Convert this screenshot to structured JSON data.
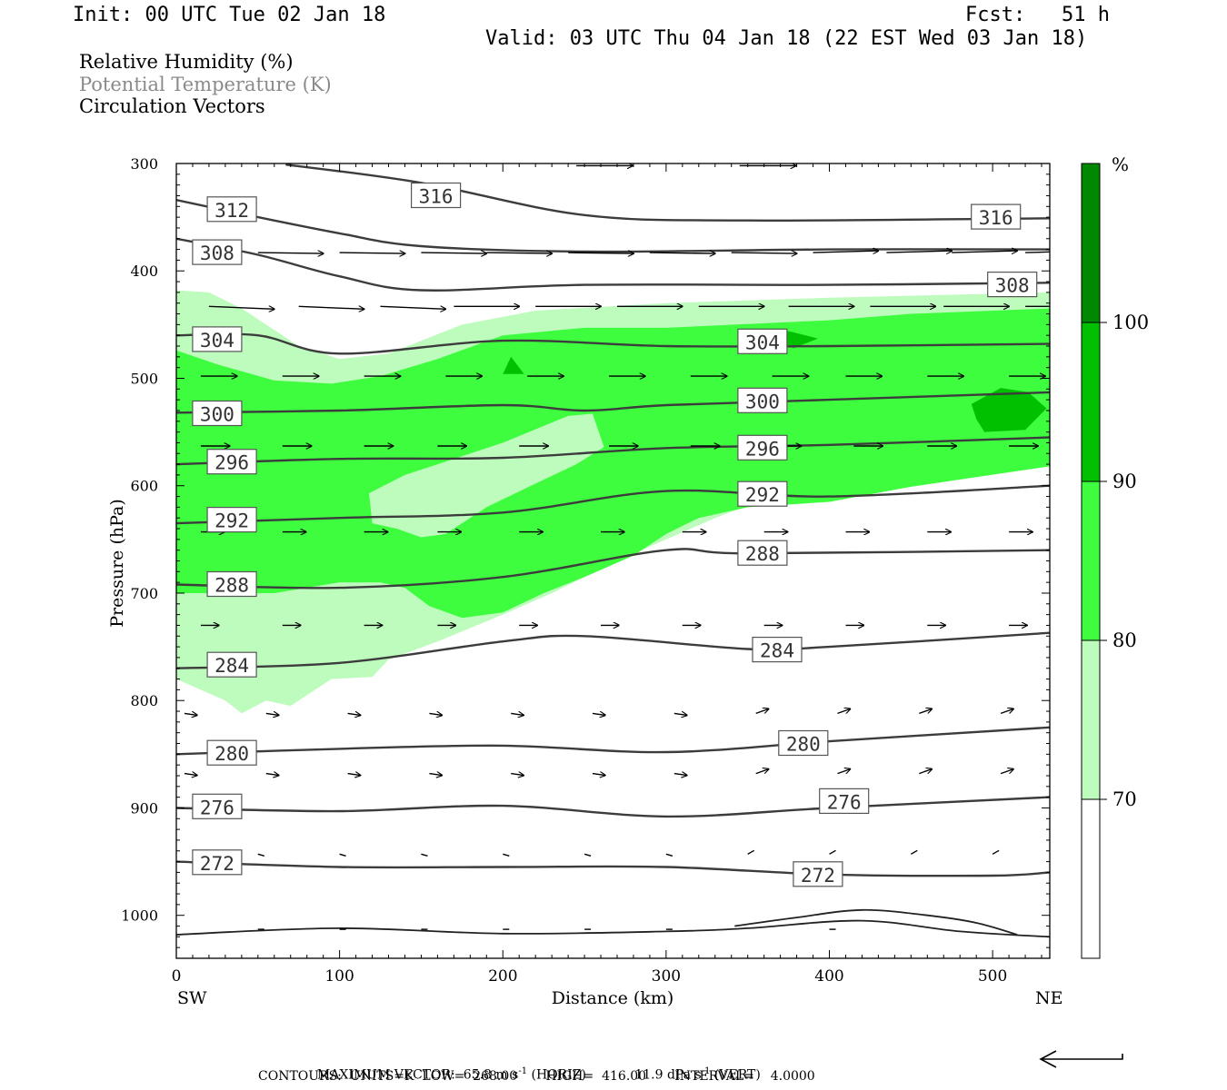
{
  "header": {
    "init": "Init: 00 UTC Tue 02 Jan 18",
    "fcst": "Fcst:   51 h",
    "valid": "Valid: 03 UTC Thu 04 Jan 18 (22 EST Wed 03 Jan 18)"
  },
  "legend_lines": {
    "rh": "Relative Humidity (%)",
    "theta": "Potential Temperature (K)",
    "vectors": "Circulation Vectors"
  },
  "colors": {
    "rh_70_80": "#bdfcbd",
    "rh_80_90": "#3efc3e",
    "rh_90_100": "#00c000",
    "rh_100": "#008800",
    "theta_line": "#3c3c3c",
    "theta_label_text": "#333333"
  },
  "footer": {
    "max_vector": "MAXIMUM VECTOR:  65.8 m s",
    "max_vector_horiz_unit": "(HORIZ)",
    "max_vector_vert": "11.9 dPa s",
    "max_vector_vert_unit": "(VERT)",
    "contours": "CONTOURS:  UNITS=K  LOW=  268.00       HIGH=  416.00       INTERVAL=    4.0000"
  },
  "chart_data": {
    "type": "cross-section",
    "xlabel": "Distance (km)",
    "ylabel": "Pressure (hPa)",
    "xlim": [
      0,
      535
    ],
    "ylim": [
      300,
      1040
    ],
    "x_ticks": [
      0,
      100,
      200,
      300,
      400,
      500
    ],
    "y_ticks": [
      300,
      400,
      500,
      600,
      700,
      800,
      900,
      1000
    ],
    "x_end_labels": {
      "left": "SW",
      "right": "NE"
    },
    "colorbar": {
      "unit": "%",
      "levels": [
        70,
        80,
        90,
        100
      ]
    },
    "theta_contours": [
      {
        "level": 316,
        "label_pos": [
          [
            159,
            330
          ],
          [
            502,
            350
          ]
        ],
        "points": [
          [
            67,
            301
          ],
          [
            150,
            318
          ],
          [
            250,
            348
          ],
          [
            350,
            353
          ],
          [
            535,
            351
          ]
        ]
      },
      {
        "level": 312,
        "label_pos": [
          [
            34,
            343
          ]
        ],
        "points": [
          [
            0,
            334
          ],
          [
            50,
            350
          ],
          [
            100,
            365
          ],
          [
            150,
            377
          ],
          [
            250,
            382
          ],
          [
            400,
            380
          ],
          [
            535,
            380
          ]
        ]
      },
      {
        "level": 308,
        "label_pos": [
          [
            25,
            383
          ],
          [
            512,
            413
          ]
        ],
        "points": [
          [
            0,
            370
          ],
          [
            50,
            385
          ],
          [
            100,
            405
          ],
          [
            150,
            418
          ],
          [
            250,
            413
          ],
          [
            400,
            413
          ],
          [
            535,
            411
          ]
        ]
      },
      {
        "level": 304,
        "label_pos": [
          [
            25,
            464
          ],
          [
            359,
            466
          ]
        ],
        "points": [
          [
            0,
            460
          ],
          [
            50,
            460
          ],
          [
            100,
            477
          ],
          [
            200,
            465
          ],
          [
            300,
            470
          ],
          [
            400,
            470
          ],
          [
            535,
            468
          ]
        ]
      },
      {
        "level": 300,
        "label_pos": [
          [
            25,
            533
          ],
          [
            359,
            521
          ]
        ],
        "points": [
          [
            0,
            532
          ],
          [
            100,
            530
          ],
          [
            200,
            525
          ],
          [
            250,
            530
          ],
          [
            300,
            525
          ],
          [
            400,
            520
          ],
          [
            535,
            513
          ]
        ]
      },
      {
        "level": 296,
        "label_pos": [
          [
            34,
            578
          ],
          [
            359,
            565
          ]
        ],
        "points": [
          [
            0,
            580
          ],
          [
            100,
            575
          ],
          [
            200,
            574
          ],
          [
            300,
            565
          ],
          [
            400,
            562
          ],
          [
            535,
            555
          ]
        ]
      },
      {
        "level": 292,
        "label_pos": [
          [
            34,
            632
          ],
          [
            359,
            608
          ]
        ],
        "points": [
          [
            0,
            635
          ],
          [
            100,
            630
          ],
          [
            200,
            625
          ],
          [
            300,
            605
          ],
          [
            400,
            610
          ],
          [
            535,
            600
          ]
        ]
      },
      {
        "level": 288,
        "label_pos": [
          [
            34,
            692
          ],
          [
            359,
            663
          ]
        ],
        "points": [
          [
            0,
            692
          ],
          [
            100,
            695
          ],
          [
            200,
            685
          ],
          [
            300,
            660
          ],
          [
            350,
            663
          ],
          [
            535,
            660
          ]
        ]
      },
      {
        "level": 284,
        "label_pos": [
          [
            34,
            767
          ],
          [
            368,
            753
          ]
        ],
        "points": [
          [
            0,
            770
          ],
          [
            100,
            765
          ],
          [
            200,
            745
          ],
          [
            250,
            740
          ],
          [
            350,
            752
          ],
          [
            400,
            750
          ],
          [
            535,
            737
          ]
        ]
      },
      {
        "level": 280,
        "label_pos": [
          [
            34,
            849
          ],
          [
            384,
            840
          ]
        ],
        "points": [
          [
            0,
            850
          ],
          [
            100,
            845
          ],
          [
            200,
            842
          ],
          [
            300,
            848
          ],
          [
            400,
            838
          ],
          [
            535,
            825
          ]
        ]
      },
      {
        "level": 276,
        "label_pos": [
          [
            25,
            899
          ],
          [
            409,
            894
          ]
        ],
        "points": [
          [
            0,
            900
          ],
          [
            100,
            903
          ],
          [
            200,
            898
          ],
          [
            300,
            908
          ],
          [
            400,
            900
          ],
          [
            535,
            890
          ]
        ]
      },
      {
        "level": 272,
        "label_pos": [
          [
            25,
            951
          ],
          [
            393,
            962
          ]
        ],
        "points": [
          [
            0,
            950
          ],
          [
            100,
            955
          ],
          [
            200,
            955
          ],
          [
            300,
            955
          ],
          [
            400,
            962
          ],
          [
            500,
            963
          ],
          [
            535,
            960
          ]
        ]
      }
    ],
    "rh_regions": [
      {
        "level": 70,
        "points": [
          [
            0,
            418
          ],
          [
            20,
            420
          ],
          [
            40,
            435
          ],
          [
            75,
            470
          ],
          [
            100,
            482
          ],
          [
            130,
            477
          ],
          [
            175,
            450
          ],
          [
            220,
            437
          ],
          [
            300,
            430
          ],
          [
            400,
            425
          ],
          [
            535,
            420
          ],
          [
            535,
            565
          ],
          [
            500,
            573
          ],
          [
            440,
            587
          ],
          [
            400,
            600
          ],
          [
            360,
            613
          ],
          [
            330,
            630
          ],
          [
            300,
            650
          ],
          [
            270,
            670
          ],
          [
            230,
            700
          ],
          [
            200,
            720
          ],
          [
            160,
            745
          ],
          [
            130,
            762
          ],
          [
            120,
            778
          ],
          [
            95,
            780
          ],
          [
            70,
            805
          ],
          [
            55,
            800
          ],
          [
            40,
            812
          ],
          [
            30,
            800
          ],
          [
            0,
            780
          ]
        ]
      },
      {
        "level": 80,
        "points": [
          [
            0,
            474
          ],
          [
            25,
            487
          ],
          [
            60,
            502
          ],
          [
            95,
            505
          ],
          [
            125,
            498
          ],
          [
            160,
            482
          ],
          [
            200,
            460
          ],
          [
            250,
            453
          ],
          [
            300,
            453
          ],
          [
            400,
            446
          ],
          [
            450,
            440
          ],
          [
            535,
            435
          ],
          [
            535,
            582
          ],
          [
            490,
            592
          ],
          [
            450,
            601
          ],
          [
            400,
            615
          ],
          [
            350,
            620
          ],
          [
            320,
            630
          ],
          [
            300,
            645
          ],
          [
            280,
            665
          ],
          [
            250,
            685
          ],
          [
            225,
            700
          ],
          [
            200,
            718
          ],
          [
            175,
            723
          ],
          [
            155,
            712
          ],
          [
            140,
            695
          ],
          [
            125,
            690
          ],
          [
            100,
            690
          ],
          [
            60,
            700
          ],
          [
            20,
            700
          ],
          [
            0,
            700
          ]
        ]
      },
      {
        "level": 90,
        "points": [
          [
            200,
            496
          ],
          [
            205,
            480
          ],
          [
            213,
            496
          ]
        ]
      },
      {
        "level": 90,
        "points": [
          [
            487,
            524
          ],
          [
            505,
            509
          ],
          [
            522,
            513
          ],
          [
            533,
            528
          ],
          [
            520,
            548
          ],
          [
            495,
            550
          ],
          [
            490,
            538
          ]
        ]
      },
      {
        "level": 90,
        "points": [
          [
            358,
            460
          ],
          [
            375,
            456
          ],
          [
            393,
            463
          ],
          [
            378,
            472
          ]
        ]
      }
    ],
    "rh_holes_70": [
      {
        "points": [
          [
            118,
            607
          ],
          [
            140,
            590
          ],
          [
            160,
            580
          ],
          [
            200,
            560
          ],
          [
            240,
            535
          ],
          [
            255,
            533
          ],
          [
            262,
            564
          ],
          [
            245,
            580
          ],
          [
            220,
            598
          ],
          [
            190,
            620
          ],
          [
            165,
            645
          ],
          [
            150,
            648
          ],
          [
            135,
            640
          ],
          [
            120,
            635
          ]
        ]
      }
    ],
    "surface_contours": [
      {
        "level": 272,
        "points": [
          [
            0,
            1018
          ],
          [
            100,
            1012
          ],
          [
            200,
            1017
          ],
          [
            300,
            1015
          ],
          [
            350,
            1012
          ],
          [
            420,
            1005
          ],
          [
            480,
            1015
          ],
          [
            535,
            1020
          ]
        ]
      },
      {
        "level": 272,
        "points": [
          [
            342,
            1010
          ],
          [
            380,
            1002
          ],
          [
            420,
            995
          ],
          [
            460,
            1000
          ],
          [
            490,
            1007
          ],
          [
            515,
            1018
          ]
        ]
      }
    ],
    "vector_rows": [
      {
        "p": 302,
        "x": [
          245,
          345
        ]
      },
      {
        "p": 383,
        "x": [
          50,
          100,
          150,
          190,
          240,
          290,
          340,
          390,
          435,
          475,
          520
        ]
      },
      {
        "p": 433,
        "x": [
          20,
          75,
          125,
          170,
          220,
          270,
          320,
          375,
          425,
          470,
          520
        ]
      },
      {
        "p": 498,
        "x": [
          15,
          65,
          115,
          165,
          215,
          265,
          315,
          365,
          410,
          460,
          510
        ]
      },
      {
        "p": 563,
        "x": [
          15,
          65,
          115,
          160,
          210,
          265,
          315,
          365,
          415,
          460,
          510
        ]
      },
      {
        "p": 643,
        "x": [
          15,
          65,
          115,
          160,
          210,
          260,
          310,
          360,
          410,
          460,
          510
        ]
      },
      {
        "p": 730,
        "x": [
          15,
          65,
          115,
          160,
          210,
          260,
          310,
          360,
          410,
          460,
          510
        ]
      },
      {
        "p": 812,
        "x": [
          5,
          55,
          105,
          155,
          205,
          255,
          305,
          355,
          405,
          455,
          505
        ]
      },
      {
        "p": 868,
        "x": [
          5,
          55,
          105,
          155,
          205,
          255,
          305,
          355,
          405,
          455,
          505
        ]
      },
      {
        "p": 943,
        "x": [
          50,
          100,
          150,
          200,
          250,
          300,
          350,
          400,
          450,
          500
        ]
      },
      {
        "p": 1013,
        "x": [
          50,
          100,
          150,
          200,
          250,
          300,
          400
        ]
      }
    ]
  }
}
